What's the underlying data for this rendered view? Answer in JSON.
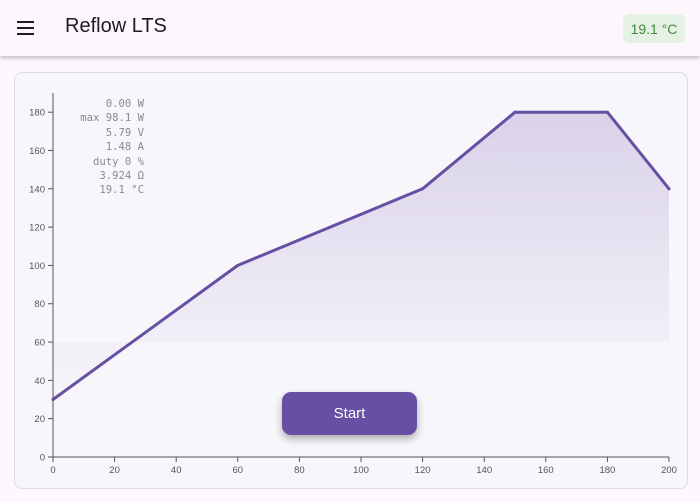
{
  "app": {
    "title": "Reflow LTS",
    "menu_icon": "hamburger-menu-icon",
    "temperature_chip": "19.1 °C"
  },
  "stats": [
    "0.00 W",
    "max 98.1 W",
    "5.79 V",
    "1.48 A",
    "duty 0 %",
    "3.924 Ω",
    "19.1 °C"
  ],
  "start_button": {
    "label": "Start"
  },
  "colors": {
    "accent": "#6750a4",
    "chip_bg": "#e6f1e6",
    "chip_text": "#3d8a3d"
  },
  "chart_data": {
    "type": "area",
    "x": [
      0,
      60,
      120,
      150,
      180,
      200
    ],
    "y": [
      30,
      100,
      140,
      180,
      180,
      140
    ],
    "xlim": [
      0,
      200
    ],
    "ylim": [
      0,
      190
    ],
    "x_ticks": [
      0,
      20,
      40,
      60,
      80,
      100,
      120,
      140,
      160,
      180,
      200
    ],
    "y_ticks": [
      0,
      20,
      40,
      60,
      80,
      100,
      120,
      140,
      160,
      180
    ],
    "grid": false,
    "xlabel": "",
    "ylabel": "",
    "title": ""
  }
}
